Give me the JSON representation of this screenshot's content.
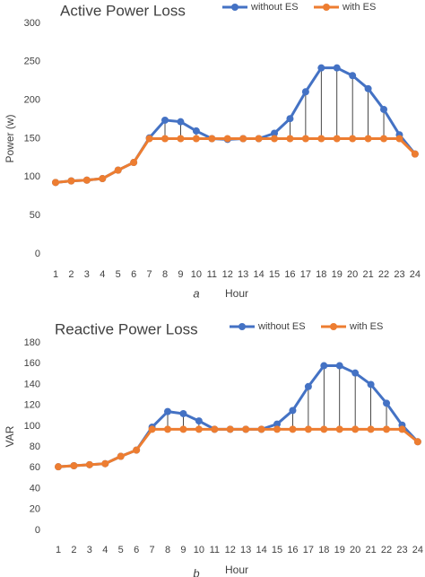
{
  "chart_data": [
    {
      "type": "line",
      "title": "Active Power Loss",
      "xlabel": "Hour",
      "ylabel": "Power (w)",
      "panel_label": "a",
      "ylim": [
        0,
        300
      ],
      "yticks": [
        0,
        50,
        100,
        150,
        200,
        250,
        300
      ],
      "grid": false,
      "legend": "top",
      "drop_lines": true,
      "categories": [
        "1",
        "2",
        "3",
        "4",
        "5",
        "6",
        "7",
        "8",
        "9",
        "10",
        "11",
        "12",
        "13",
        "14",
        "15",
        "16",
        "17",
        "18",
        "19",
        "20",
        "21",
        "22",
        "23",
        "24"
      ],
      "series": [
        {
          "name": "without ES",
          "color": "#4472C4",
          "values": [
            93,
            95,
            96,
            98,
            109,
            119,
            151,
            174,
            172,
            160,
            150,
            149,
            150,
            150,
            157,
            176,
            211,
            242,
            242,
            232,
            215,
            188,
            155,
            130
          ]
        },
        {
          "name": "with ES",
          "color": "#ED7D31",
          "values": [
            93,
            95,
            96,
            98,
            109,
            119,
            150,
            150,
            150,
            150,
            150,
            150,
            150,
            150,
            150,
            150,
            150,
            150,
            150,
            150,
            150,
            150,
            150,
            130
          ]
        }
      ]
    },
    {
      "type": "line",
      "title": "Reactive Power Loss",
      "xlabel": "Hour",
      "ylabel": "VAR",
      "panel_label": "b",
      "ylim": [
        0,
        180
      ],
      "yticks": [
        0,
        20,
        40,
        60,
        80,
        100,
        120,
        140,
        160,
        180
      ],
      "grid": false,
      "legend": "top",
      "drop_lines": true,
      "categories": [
        "1",
        "2",
        "3",
        "4",
        "5",
        "6",
        "7",
        "8",
        "9",
        "10",
        "11",
        "12",
        "13",
        "14",
        "15",
        "16",
        "17",
        "18",
        "19",
        "20",
        "21",
        "22",
        "23",
        "24"
      ],
      "series": [
        {
          "name": "without ES",
          "color": "#4472C4",
          "values": [
            61,
            62,
            63,
            64,
            71,
            77,
            99,
            114,
            112,
            105,
            97,
            97,
            97,
            97,
            102,
            115,
            138,
            158,
            158,
            151,
            140,
            122,
            101,
            85
          ]
        },
        {
          "name": "with ES",
          "color": "#ED7D31",
          "values": [
            61,
            62,
            63,
            64,
            71,
            77,
            97,
            97,
            97,
            97,
            97,
            97,
            97,
            97,
            97,
            97,
            97,
            97,
            97,
            97,
            97,
            97,
            97,
            85
          ]
        }
      ]
    }
  ]
}
